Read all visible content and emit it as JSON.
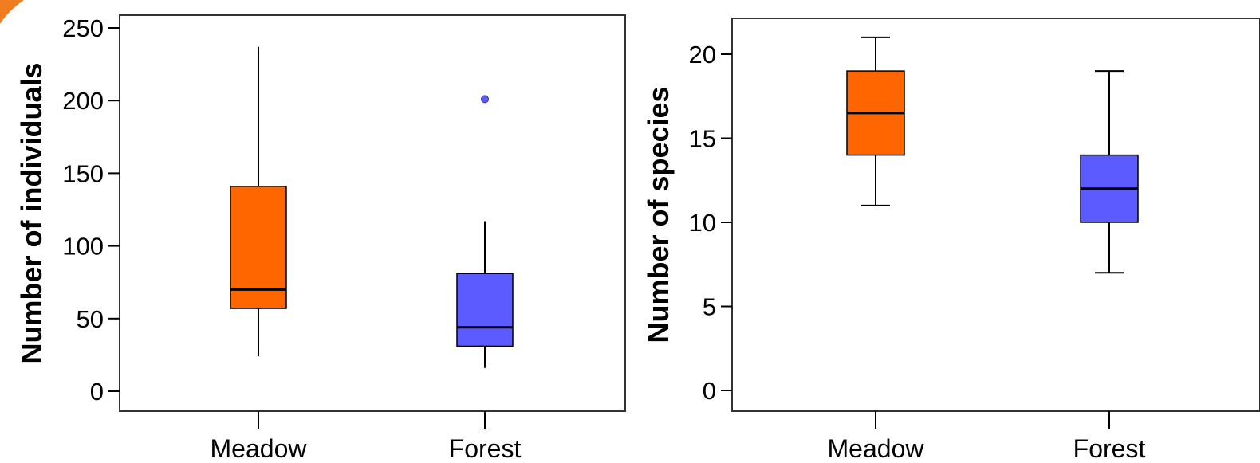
{
  "colors": {
    "corner_accent": "#f07d20",
    "meadow_fill": "#ff6600",
    "forest_fill": "#5b5bff",
    "outlier_fill": "#5b5bff",
    "stroke": "#000000",
    "frame": "#333333",
    "background": "#ffffff"
  },
  "chart_data": [
    {
      "type": "boxplot",
      "ylabel": "Number of individuals",
      "xlabel": "",
      "ylim": [
        0,
        260
      ],
      "yticks": [
        0,
        50,
        100,
        150,
        200,
        250
      ],
      "ytick_labels": [
        "0",
        "50",
        "100",
        "150",
        "200",
        "250"
      ],
      "grid": false,
      "categories": [
        "Meadow",
        "Forest"
      ],
      "series": [
        {
          "category": "Meadow",
          "whisker_low": 24,
          "q1": 57,
          "median": 70,
          "q3": 141,
          "whisker_high": 237,
          "outliers": [],
          "color": "#ff6600"
        },
        {
          "category": "Forest",
          "whisker_low": 16,
          "q1": 31,
          "median": 44,
          "q3": 81,
          "whisker_high": 117,
          "outliers": [
            201
          ],
          "color": "#5b5bff"
        }
      ]
    },
    {
      "type": "boxplot",
      "ylabel": "Number of species",
      "xlabel": "",
      "ylim": [
        0,
        23.3
      ],
      "yticks": [
        0,
        5,
        10,
        15,
        20
      ],
      "ytick_labels": [
        "0",
        "5",
        "10",
        "15",
        "20"
      ],
      "grid": false,
      "categories": [
        "Meadow",
        "Forest"
      ],
      "series": [
        {
          "category": "Meadow",
          "whisker_low": 11,
          "q1": 14,
          "median": 16.5,
          "q3": 19,
          "whisker_high": 21,
          "outliers": [],
          "color": "#ff6600"
        },
        {
          "category": "Forest",
          "whisker_low": 7,
          "q1": 10,
          "median": 12,
          "q3": 14,
          "whisker_high": 19,
          "outliers": [],
          "color": "#5b5bff"
        }
      ]
    }
  ]
}
